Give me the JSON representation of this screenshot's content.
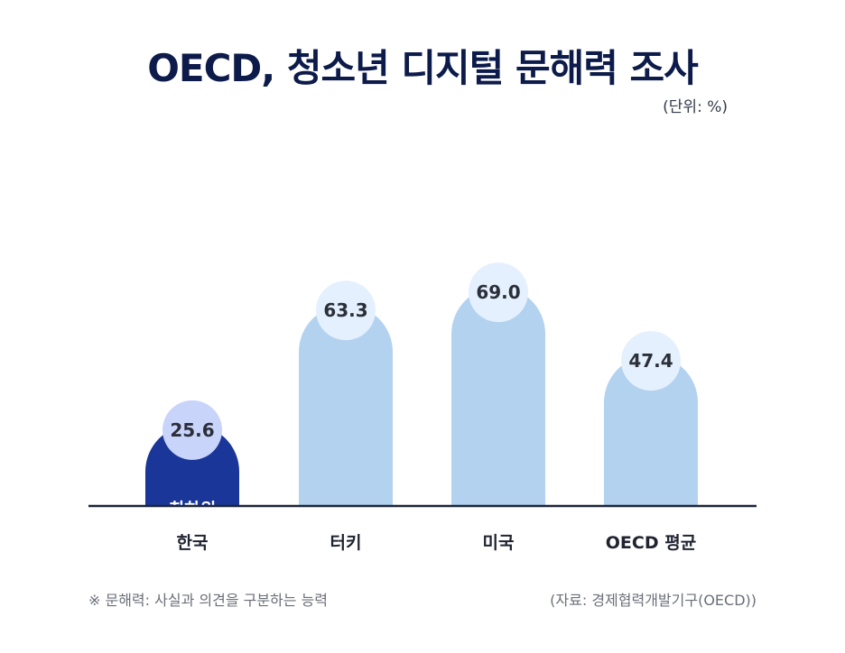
{
  "title": "OECD, 청소년 디지털 문해력 조사",
  "unit_label": "(단위: %)",
  "footnote": "※ 문해력: 사실과 의견을 구분하는 능력",
  "source": "(자료: 경제협력개발기구(OECD))",
  "highlight_label": "최하위",
  "colors": {
    "title": "#0d1b4a",
    "highlight_bar": "#1a3699",
    "bar": "#b3d2f0",
    "highlight_bubble": "#c9d4fb",
    "bubble": "#e4f0fd",
    "baseline": "#1b2538"
  },
  "chart_data": {
    "type": "bar",
    "title": "OECD, 청소년 디지털 문해력 조사",
    "categories": [
      "한국",
      "터키",
      "미국",
      "OECD 평균"
    ],
    "values": [
      25.6,
      63.3,
      69.0,
      47.4
    ],
    "value_labels": [
      "25.6",
      "63.3",
      "69.0",
      "47.4"
    ],
    "highlight_index": 0,
    "ylim": [
      0,
      100
    ],
    "grid": false,
    "legend": "none"
  }
}
